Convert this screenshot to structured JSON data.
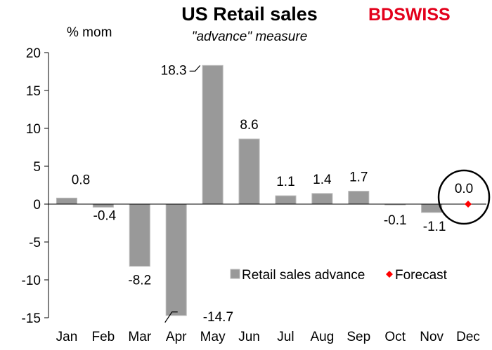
{
  "logo": {
    "part1": "BD",
    "part2": "SWISS",
    "part1_color": "#e3001b",
    "part2_color": "#e3001b"
  },
  "chart_data": {
    "type": "bar",
    "title": "US Retail sales",
    "subtitle": "\"advance\" measure",
    "ylabel": "% mom",
    "xlabel": "",
    "categories": [
      "Jan",
      "Feb",
      "Mar",
      "Apr",
      "May",
      "Jun",
      "Jul",
      "Aug",
      "Sep",
      "Oct",
      "Nov",
      "Dec"
    ],
    "series": [
      {
        "name": "Retail sales advance",
        "values": [
          0.8,
          -0.4,
          -8.2,
          -14.7,
          18.3,
          8.6,
          1.1,
          1.4,
          1.7,
          -0.1,
          -1.1,
          null
        ],
        "color": "#999999"
      },
      {
        "name": "Forecast",
        "values": [
          null,
          null,
          null,
          null,
          null,
          null,
          null,
          null,
          null,
          null,
          null,
          0.0
        ],
        "color": "#ff0000",
        "marker": "diamond"
      }
    ],
    "data_labels": [
      "0.8",
      "-0.4",
      "-8.2",
      "-14.7",
      "18.3",
      "8.6",
      "1.1",
      "1.4",
      "1.7",
      "-0.1",
      "-1.1",
      "0.0"
    ],
    "ylim": [
      -15,
      20
    ],
    "yticks": [
      20,
      15,
      10,
      5,
      0,
      -5,
      -10,
      -15
    ],
    "ytick_labels": [
      "20",
      "15",
      "10",
      "5",
      "0",
      "-5",
      "-10",
      "-15"
    ],
    "grid": false,
    "legend": "lower-right",
    "annotation": "circle highlighting Dec forecast"
  }
}
